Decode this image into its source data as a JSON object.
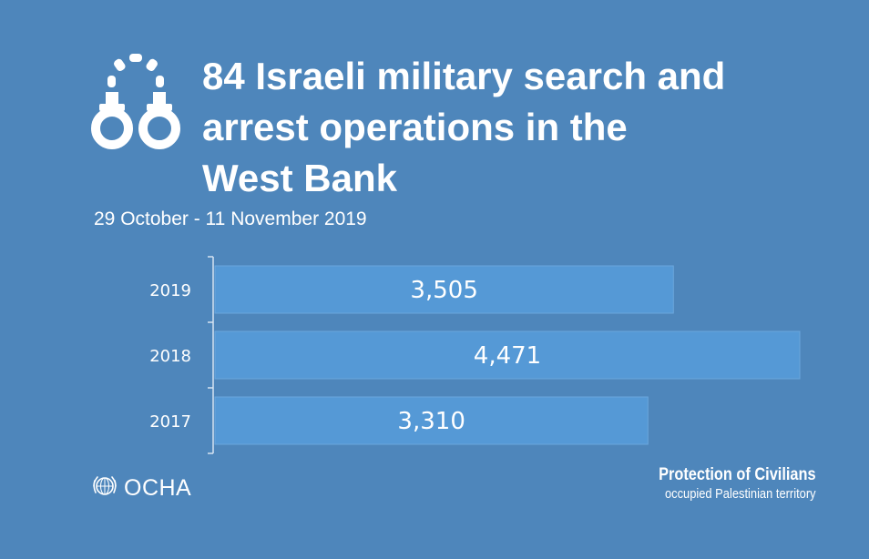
{
  "header": {
    "icon": "handcuffs-icon",
    "title_line1": "84 Israeli military search and",
    "title_line2": "arrest operations in the",
    "title_line3": "West Bank",
    "subtitle": "29 October - 11 November 2019"
  },
  "chart_data": {
    "type": "bar",
    "orientation": "horizontal",
    "categories": [
      "2019",
      "2018",
      "2017"
    ],
    "values": [
      3505,
      4471,
      3310
    ],
    "value_labels": [
      "3,505",
      "4,471",
      "3,310"
    ],
    "title": "84 Israeli military search and arrest operations in the West Bank",
    "subtitle": "29 October - 11 November 2019",
    "xlim": [
      0,
      4471
    ],
    "grid": false,
    "legend": "none",
    "bar_color": "#5599d6"
  },
  "footer": {
    "logo_text": "OCHA",
    "logo_icon": "un-emblem-icon",
    "poc_title": "Protection of Civilians",
    "poc_subtitle": "occupied Palestinian territory"
  },
  "colors": {
    "background": "#4e86bb",
    "bar": "#5599d6",
    "text": "#ffffff"
  }
}
